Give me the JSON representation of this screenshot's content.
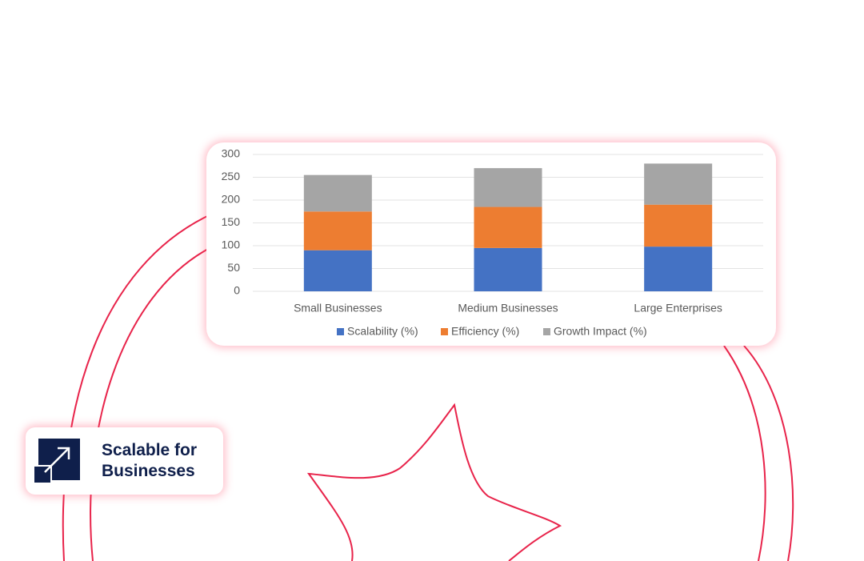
{
  "chart_data": {
    "type": "stacked-bar",
    "categories": [
      "Small Businesses",
      "Medium Businesses",
      "Large Enterprises"
    ],
    "series": [
      {
        "name": "Scalability (%)",
        "color": "#4472c4",
        "values": [
          90,
          95,
          98
        ]
      },
      {
        "name": "Efficiency (%)",
        "color": "#ed7d31",
        "values": [
          85,
          90,
          92
        ]
      },
      {
        "name": "Growth Impact (%)",
        "color": "#a5a5a5",
        "values": [
          80,
          85,
          90
        ]
      }
    ],
    "ylim": [
      0,
      300
    ],
    "yticks": [
      0,
      50,
      100,
      150,
      200,
      250,
      300
    ],
    "grid": true,
    "legend": "bottom"
  },
  "badge": {
    "lines": [
      "Scalable for",
      "Businesses"
    ]
  }
}
